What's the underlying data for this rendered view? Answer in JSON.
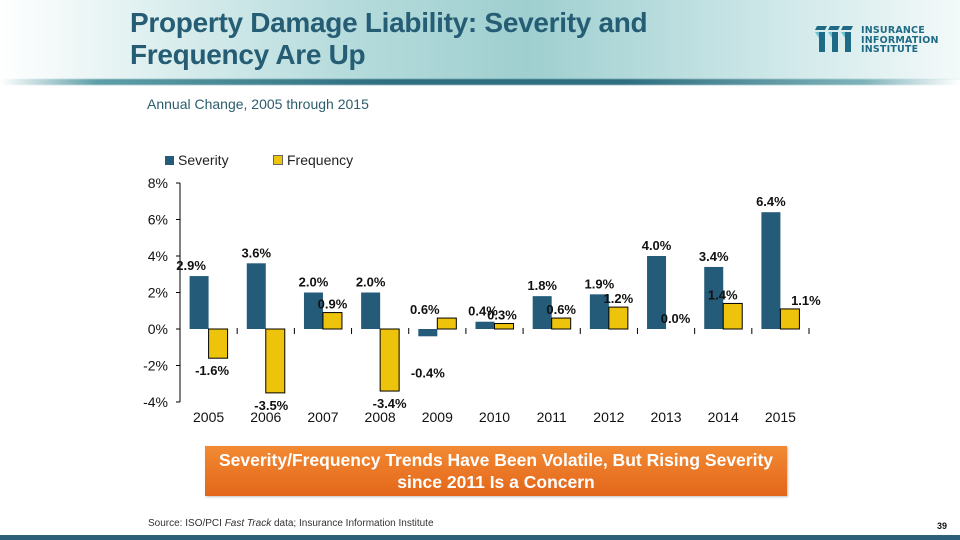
{
  "slide": {
    "title": "Property Damage Liability: Severity and Frequency Are Up",
    "subtitle": "Annual Change, 2005 through 2015",
    "logo": {
      "line1": "INSURANCE",
      "line2": "INFORMATION",
      "line3": "INSTITUTE",
      "icon": "iii-logo-icon"
    },
    "callout": "Severity/Frequency Trends Have Been Volatile, But Rising Severity since 2011 Is a Concern",
    "source": {
      "prefix": "Source: ISO/PCI ",
      "italic": "Fast Track",
      "suffix": " data; Insurance Information Institute"
    },
    "page_number": "39"
  },
  "colors": {
    "severity": "#245b78",
    "frequency": "#eec30c",
    "title": "#255d74",
    "callout": "#e8701f"
  },
  "chart_data": {
    "type": "bar",
    "title": "Annual Change, 2005 through 2015",
    "xlabel": "",
    "ylabel": "",
    "categories": [
      "2005",
      "2006",
      "2007",
      "2008",
      "2009",
      "2010",
      "2011",
      "2012",
      "2013",
      "2014",
      "2015"
    ],
    "series": [
      {
        "name": "Severity",
        "color": "#245b78",
        "values": [
          2.9,
          3.6,
          2.0,
          2.0,
          -0.4,
          0.4,
          1.8,
          1.9,
          4.0,
          3.4,
          6.4
        ],
        "labels": [
          "2.9%",
          "3.6%",
          "2.0%",
          "2.0%",
          "-0.4%",
          "0.4%",
          "1.8%",
          "1.9%",
          "4.0%",
          "3.4%",
          "6.4%"
        ]
      },
      {
        "name": "Frequency",
        "color": "#eec30c",
        "values": [
          -1.6,
          -3.5,
          0.9,
          -3.4,
          0.6,
          0.3,
          0.6,
          1.2,
          0.0,
          1.4,
          1.1
        ],
        "labels": [
          "-1.6%",
          "-3.5%",
          "0.9%",
          "-3.4%",
          "0.6%",
          "0.3%",
          "0.6%",
          "1.2%",
          "0.0%",
          "1.4%",
          "1.1%"
        ]
      }
    ],
    "ylim": [
      -4,
      8
    ],
    "yticks": [
      8,
      6,
      4,
      2,
      0,
      -2,
      -4
    ],
    "ytick_labels": [
      "8%",
      "6%",
      "4%",
      "2%",
      "0%",
      "-2%",
      "-4%"
    ],
    "grid": false,
    "legend": "top-left"
  }
}
